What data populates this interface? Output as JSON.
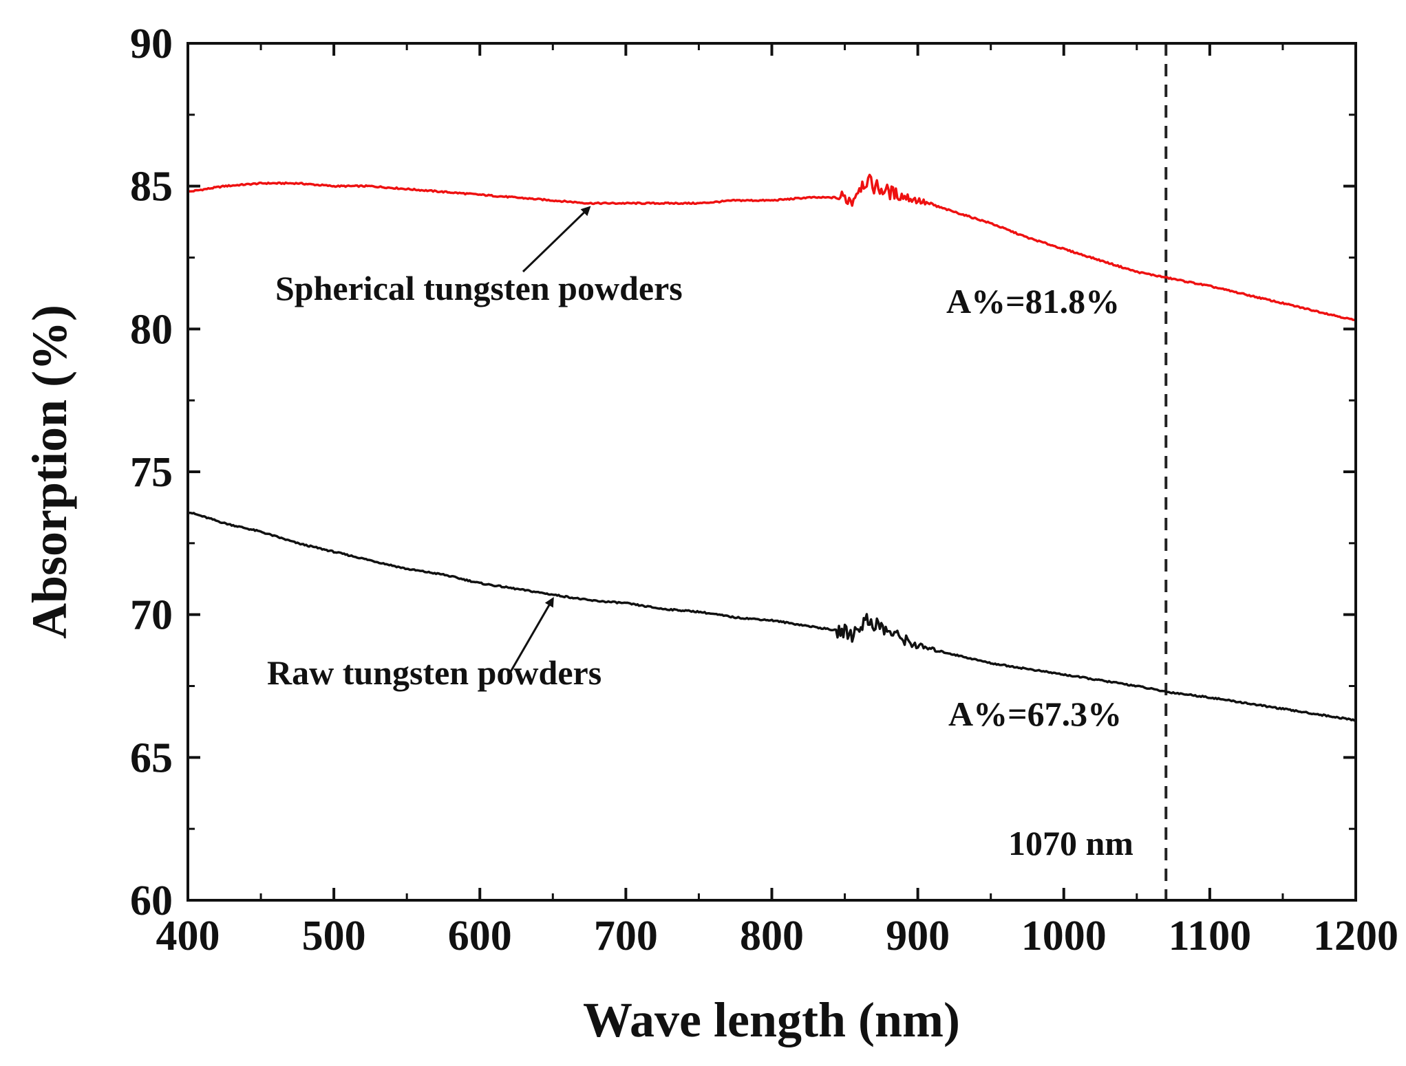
{
  "chart_data": {
    "type": "line",
    "title": "",
    "xlabel": "Wave length (nm)",
    "ylabel": "Absorption (%)",
    "xlim": [
      400,
      1200
    ],
    "ylim": [
      60,
      90
    ],
    "xticks": [
      400,
      500,
      600,
      700,
      800,
      900,
      1000,
      1100,
      1200
    ],
    "yticks": [
      60,
      65,
      70,
      75,
      80,
      85,
      90
    ],
    "xtick_labels": [
      "400",
      "500",
      "600",
      "700",
      "800",
      "900",
      "1000",
      "1100",
      "1200"
    ],
    "ytick_labels": [
      "60",
      "65",
      "70",
      "75",
      "80",
      "85",
      "90"
    ],
    "grid": false,
    "series": [
      {
        "name": "Spherical tungsten powders",
        "color": "#ee1111",
        "x": [
          400,
          425,
          450,
          475,
          500,
          525,
          550,
          575,
          600,
          625,
          650,
          675,
          700,
          725,
          750,
          775,
          800,
          825,
          850,
          855,
          860,
          865,
          870,
          880,
          900,
          925,
          950,
          975,
          1000,
          1025,
          1050,
          1070,
          1100,
          1125,
          1150,
          1175,
          1200
        ],
        "values": [
          84.8,
          85.0,
          85.1,
          85.1,
          85.0,
          85.0,
          84.9,
          84.8,
          84.7,
          84.6,
          84.5,
          84.4,
          84.4,
          84.4,
          84.4,
          84.5,
          84.5,
          84.6,
          84.6,
          84.5,
          85.0,
          85.2,
          85.0,
          84.8,
          84.5,
          84.1,
          83.7,
          83.2,
          82.8,
          82.4,
          82.0,
          81.8,
          81.5,
          81.2,
          80.9,
          80.6,
          80.3
        ]
      },
      {
        "name": "Raw tungsten powders",
        "color": "#111111",
        "x": [
          400,
          425,
          450,
          475,
          500,
          525,
          550,
          575,
          600,
          625,
          650,
          675,
          700,
          725,
          750,
          775,
          800,
          825,
          850,
          855,
          860,
          865,
          870,
          880,
          900,
          925,
          950,
          975,
          1000,
          1025,
          1050,
          1070,
          1100,
          1125,
          1150,
          1175,
          1200
        ],
        "values": [
          73.6,
          73.2,
          72.9,
          72.5,
          72.2,
          71.9,
          71.6,
          71.4,
          71.1,
          70.9,
          70.7,
          70.5,
          70.4,
          70.2,
          70.1,
          69.9,
          69.8,
          69.6,
          69.4,
          69.3,
          69.6,
          69.8,
          69.7,
          69.4,
          68.9,
          68.6,
          68.3,
          68.1,
          67.9,
          67.7,
          67.5,
          67.3,
          67.1,
          66.9,
          66.7,
          66.5,
          66.3
        ]
      }
    ],
    "vline": {
      "x": 1070,
      "label": "1070 nm",
      "style": "dashed"
    },
    "annotations": [
      {
        "text": "Spherical tungsten powders",
        "arrow_to": [
          675,
          84.4
        ]
      },
      {
        "text": "Raw tungsten powders",
        "arrow_to": [
          650,
          70.7
        ]
      },
      {
        "text": "A%=81.8%"
      },
      {
        "text": "A%=67.3%"
      }
    ]
  }
}
